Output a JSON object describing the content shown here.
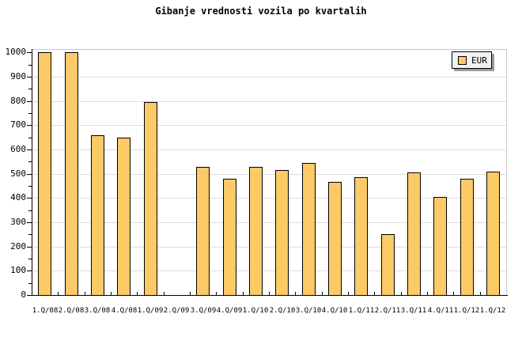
{
  "title": "Gibanje vrednosti vozila po kvartalih",
  "legend": {
    "label": "EUR"
  },
  "colors": {
    "background": "#ffffff",
    "bar_fill": "#fcca66",
    "bar_border": "#000000",
    "grid": "#dcdcdc",
    "frame": "#c9c9c9",
    "axis": "#000000",
    "text": "#000000",
    "legend_bg": "#f1f1f1",
    "legend_border": "#000000",
    "legend_shadow": "#9b9b9b"
  },
  "chart_data": {
    "type": "bar",
    "title": "Gibanje vrednosti vozila po kvartalih",
    "categories": [
      "1.Q/08",
      "2.Q/08",
      "3.Q/08",
      "4.Q/08",
      "1.Q/09",
      "2.Q/09",
      "3.Q/09",
      "4.Q/09",
      "1.Q/10",
      "2.Q/10",
      "3.Q/10",
      "4.Q/10",
      "1.Q/11",
      "2.Q/11",
      "3.Q/11",
      "4.Q/11",
      "1.Q/12",
      "1.Q/12"
    ],
    "series": [
      {
        "name": "EUR",
        "values": [
          1000,
          1000,
          660,
          650,
          795,
          0,
          530,
          480,
          530,
          515,
          545,
          465,
          485,
          250,
          505,
          405,
          480,
          510
        ]
      }
    ],
    "xlabel": "",
    "ylabel": "",
    "ylim": [
      0,
      1000
    ],
    "ytick_major_step": 100,
    "ytick_minor_step": 50,
    "ytick_labels": [
      "0",
      "100",
      "200",
      "300",
      "400",
      "500",
      "600",
      "700",
      "800",
      "900",
      "1000"
    ],
    "grid": true,
    "grid_axis": "y",
    "legend_position": "top-right",
    "note_visible_gap": "no bar rendered for 2.Q/09 (value 0)"
  }
}
